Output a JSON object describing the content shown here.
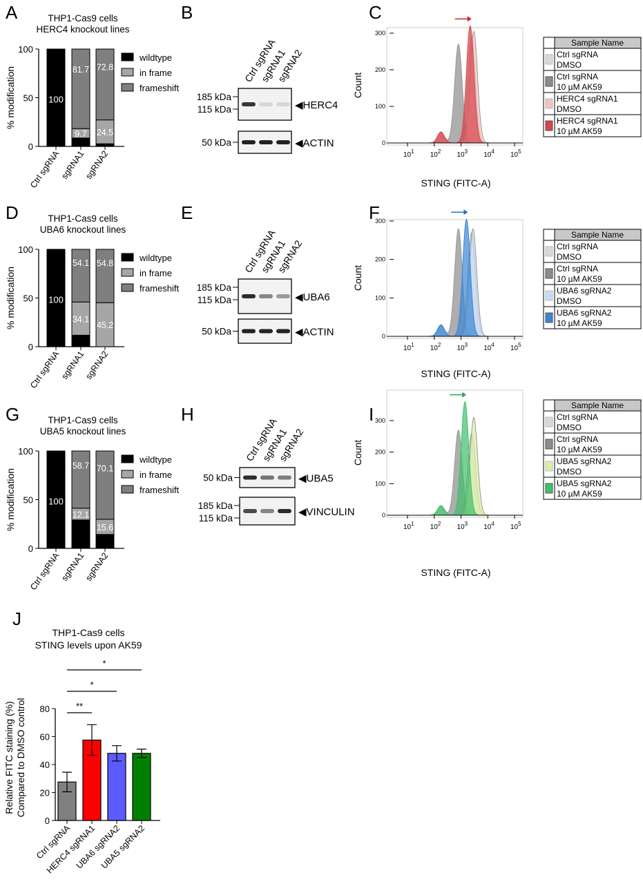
{
  "panel_letters": [
    "A",
    "B",
    "C",
    "D",
    "E",
    "F",
    "G",
    "H",
    "I",
    "J"
  ],
  "chart_data": [
    {
      "id": "A",
      "type": "bar",
      "stacked": true,
      "title": [
        "THP1-Cas9 cells",
        "HERC4 knockout lines"
      ],
      "ylabel": "% modification",
      "ylim": [
        0,
        100
      ],
      "yticks": [
        0,
        50,
        100
      ],
      "categories": [
        "Ctrl sgRNA",
        "sgRNA1",
        "sgRNA2"
      ],
      "series": [
        {
          "name": "wildtype",
          "color": "#000000",
          "values": [
            100,
            8.6,
            2.7
          ]
        },
        {
          "name": "in frame",
          "color": "#a6a6a6",
          "values": [
            0,
            9.7,
            24.5
          ]
        },
        {
          "name": "frameshift",
          "color": "#7f7f7f",
          "values": [
            0,
            81.7,
            72.8
          ]
        }
      ],
      "labels": [
        [
          "100"
        ],
        [
          "9.7",
          "81.7"
        ],
        [
          "24.5",
          "72.8"
        ]
      ]
    },
    {
      "id": "D",
      "type": "bar",
      "stacked": true,
      "title": [
        "THP1-Cas9 cells",
        "UBA6 knockout lines"
      ],
      "ylabel": "% modification",
      "ylim": [
        0,
        100
      ],
      "yticks": [
        0,
        50,
        100
      ],
      "categories": [
        "Ctrl sgRNA",
        "sgRNA1",
        "sgRNA2"
      ],
      "series": [
        {
          "name": "wildtype",
          "color": "#000000",
          "values": [
            100,
            11.8,
            0
          ]
        },
        {
          "name": "in frame",
          "color": "#a6a6a6",
          "values": [
            0,
            34.1,
            45.2
          ]
        },
        {
          "name": "frameshift",
          "color": "#7f7f7f",
          "values": [
            0,
            54.1,
            54.8
          ]
        }
      ],
      "labels": [
        [
          "100"
        ],
        [
          "34.1",
          "54.1"
        ],
        [
          "45.2",
          "54.8"
        ]
      ]
    },
    {
      "id": "G",
      "type": "bar",
      "stacked": true,
      "title": [
        "THP1-Cas9 cells",
        "UBA5 knockout lines"
      ],
      "ylabel": "% modification",
      "ylim": [
        0,
        100
      ],
      "yticks": [
        0,
        50,
        100
      ],
      "categories": [
        "Ctrl sgRNA",
        "sgRNA1",
        "sgRNA2"
      ],
      "series": [
        {
          "name": "wildtype",
          "color": "#000000",
          "values": [
            100,
            29.2,
            14.3
          ]
        },
        {
          "name": "in frame",
          "color": "#a6a6a6",
          "values": [
            0,
            12.1,
            15.6
          ]
        },
        {
          "name": "frameshift",
          "color": "#7f7f7f",
          "values": [
            0,
            58.7,
            70.1
          ]
        }
      ],
      "labels": [
        [
          "100"
        ],
        [
          "12.1",
          "58.7"
        ],
        [
          "15.6",
          "70.1"
        ]
      ]
    },
    {
      "id": "C",
      "type": "area",
      "xscale": "log",
      "xlabel": "STING (FITC-A)",
      "ylabel": "Count",
      "yticks": [
        0,
        100,
        200,
        300
      ],
      "xticks": [
        "10^1",
        "10^2",
        "10^3",
        "10^4",
        "10^5"
      ],
      "legend_header": "Sample Name",
      "series": [
        {
          "name": [
            "Ctrl sgRNA",
            "DMSO"
          ],
          "color": "#d9d9d9",
          "peak_x": 2500,
          "peak_count": 290
        },
        {
          "name": [
            "Ctrl sgRNA",
            "10 µM AK59"
          ],
          "color": "#8c8c8c",
          "peak_x": 800,
          "peak_count": 270
        },
        {
          "name": [
            "HERC4 sgRNA1",
            "DMSO"
          ],
          "color": "#f4c2c2",
          "peak_x": 3000,
          "peak_count": 305
        },
        {
          "name": [
            "HERC4 sgRNA1",
            "10 µM AK59"
          ],
          "color": "#d9434a",
          "peak_x": 2200,
          "peak_count": 320
        }
      ],
      "arrow_color": "#d0202a"
    },
    {
      "id": "F",
      "type": "area",
      "xscale": "log",
      "xlabel": "STING (FITC-A)",
      "ylabel": "Count",
      "yticks": [
        0,
        100,
        200,
        300
      ],
      "xticks": [
        "10^1",
        "10^2",
        "10^3",
        "10^4",
        "10^5"
      ],
      "legend_header": "Sample Name",
      "series": [
        {
          "name": [
            "Ctrl sgRNA",
            "DMSO"
          ],
          "color": "#d9d9d9",
          "peak_x": 2500,
          "peak_count": 270
        },
        {
          "name": [
            "Ctrl sgRNA",
            "10 µM AK59"
          ],
          "color": "#8c8c8c",
          "peak_x": 800,
          "peak_count": 280
        },
        {
          "name": [
            "UBA6 sgRNA2",
            "DMSO"
          ],
          "color": "#c5dcf5",
          "peak_x": 2800,
          "peak_count": 280
        },
        {
          "name": [
            "UBA6 sgRNA2",
            "10 µM AK59"
          ],
          "color": "#3a86d6",
          "peak_x": 1600,
          "peak_count": 305
        }
      ],
      "arrow_color": "#1f6fc4"
    },
    {
      "id": "I",
      "type": "area",
      "xscale": "log",
      "xlabel": "STING (FITC-A)",
      "ylabel": "Count",
      "yticks": [
        0,
        100,
        200,
        300
      ],
      "xticks": [
        "10^1",
        "10^2",
        "10^3",
        "10^4",
        "10^5"
      ],
      "legend_header": "Sample Name",
      "series": [
        {
          "name": [
            "Ctrl sgRNA",
            "DMSO"
          ],
          "color": "#d9d9d9",
          "peak_x": 2500,
          "peak_count": 260
        },
        {
          "name": [
            "Ctrl sgRNA",
            "10 µM AK59"
          ],
          "color": "#8c8c8c",
          "peak_x": 800,
          "peak_count": 270
        },
        {
          "name": [
            "UBA5 sgRNA2",
            "DMSO"
          ],
          "color": "#d8f0a0",
          "peak_x": 3000,
          "peak_count": 310
        },
        {
          "name": [
            "UBA5 sgRNA2",
            "10 µM AK59"
          ],
          "color": "#3fbf6a",
          "peak_x": 1400,
          "peak_count": 360
        }
      ],
      "arrow_color": "#2aa35a"
    },
    {
      "id": "J",
      "type": "bar",
      "title": [
        "THP1-Cas9 cells",
        "STING levels upon  AK59"
      ],
      "ylabel": [
        "Relative FITC staining (%)",
        "Compared to  DMSO control"
      ],
      "ylim": [
        0,
        80
      ],
      "yticks": [
        0,
        20,
        40,
        60,
        80
      ],
      "categories": [
        "Ctrl sgRNA",
        "HERC4 sgRNA1",
        "UBA6 sgRNA2",
        "UBA5 sgRNA2"
      ],
      "values": [
        27.5,
        57.5,
        48,
        48
      ],
      "errors": [
        7,
        11,
        5.5,
        3
      ],
      "colors": [
        "#808080",
        "#ff0000",
        "#5b5bff",
        "#008000"
      ],
      "significance": [
        {
          "from": 0,
          "to": 1,
          "label": "**"
        },
        {
          "from": 0,
          "to": 2,
          "label": "*"
        },
        {
          "from": 0,
          "to": 3,
          "label": "*"
        }
      ]
    }
  ],
  "blots": [
    {
      "id": "B",
      "lanes": [
        "Ctrl sgRNA",
        "sgRNA1",
        "sgRNA2"
      ],
      "membranes": [
        {
          "target": "HERC4",
          "markers": [
            "185 kDa",
            "115 kDa"
          ],
          "band_intensity": [
            0.9,
            0.1,
            0.1
          ]
        },
        {
          "target": "ACTIN",
          "markers": [
            "50 kDa"
          ],
          "band_intensity": [
            1,
            1,
            1
          ]
        }
      ]
    },
    {
      "id": "E",
      "lanes": [
        "Ctrl sgRNA",
        "sgRNA1",
        "sgRNA2"
      ],
      "membranes": [
        {
          "target": "UBA6",
          "markers": [
            "185 kDa",
            "115 kDa"
          ],
          "band_intensity": [
            0.95,
            0.5,
            0.4
          ]
        },
        {
          "target": "ACTIN",
          "markers": [
            "50 kDa"
          ],
          "band_intensity": [
            1,
            1,
            1
          ]
        }
      ]
    },
    {
      "id": "H",
      "lanes": [
        "Ctrl sgRNA",
        "sgRNA1",
        "sgRNA2"
      ],
      "membranes": [
        {
          "target": "UBA5",
          "markers": [
            "50 kDa"
          ],
          "band_intensity": [
            0.95,
            0.6,
            0.55
          ]
        },
        {
          "target": "VINCULIN",
          "markers": [
            "185 kDa",
            "115 kDa"
          ],
          "band_intensity": [
            0.8,
            0.5,
            0.95
          ]
        }
      ]
    }
  ]
}
